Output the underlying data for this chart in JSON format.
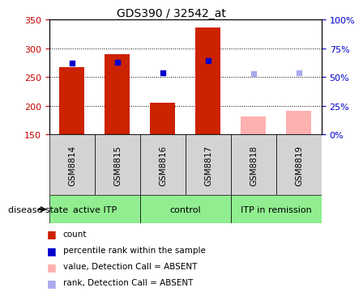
{
  "title": "GDS390 / 32542_at",
  "samples": [
    "GSM8814",
    "GSM8815",
    "GSM8816",
    "GSM8817",
    "GSM8818",
    "GSM8819"
  ],
  "count_values": [
    268,
    290,
    205,
    336,
    181,
    191
  ],
  "rank_values": [
    275,
    276,
    258,
    279,
    256,
    257
  ],
  "absent": [
    false,
    false,
    false,
    false,
    true,
    true
  ],
  "group_defs": [
    {
      "label": "active ITP",
      "start": 0,
      "end": 2,
      "color": "#90ee90"
    },
    {
      "label": "control",
      "start": 2,
      "end": 4,
      "color": "#90ee90"
    },
    {
      "label": "ITP in remission",
      "start": 4,
      "end": 6,
      "color": "#90ee90"
    }
  ],
  "ylim_left": [
    150,
    350
  ],
  "ylim_right": [
    0,
    100
  ],
  "yticks_left": [
    150,
    200,
    250,
    300,
    350
  ],
  "yticks_right": [
    0,
    25,
    50,
    75,
    100
  ],
  "bar_color_present": "#cc2200",
  "bar_color_absent": "#ffb0b0",
  "rank_color_present": "#0000cc",
  "rank_color_absent": "#aaaaee",
  "ylabel_left_color": "#cc0000",
  "ylabel_right_color": "#0000cc",
  "sample_box_color": "#d3d3d3",
  "legend_items": [
    {
      "label": "count",
      "color": "#cc2200"
    },
    {
      "label": "percentile rank within the sample",
      "color": "#0000cc"
    },
    {
      "label": "value, Detection Call = ABSENT",
      "color": "#ffb0b0"
    },
    {
      "label": "rank, Detection Call = ABSENT",
      "color": "#aaaaee"
    }
  ]
}
